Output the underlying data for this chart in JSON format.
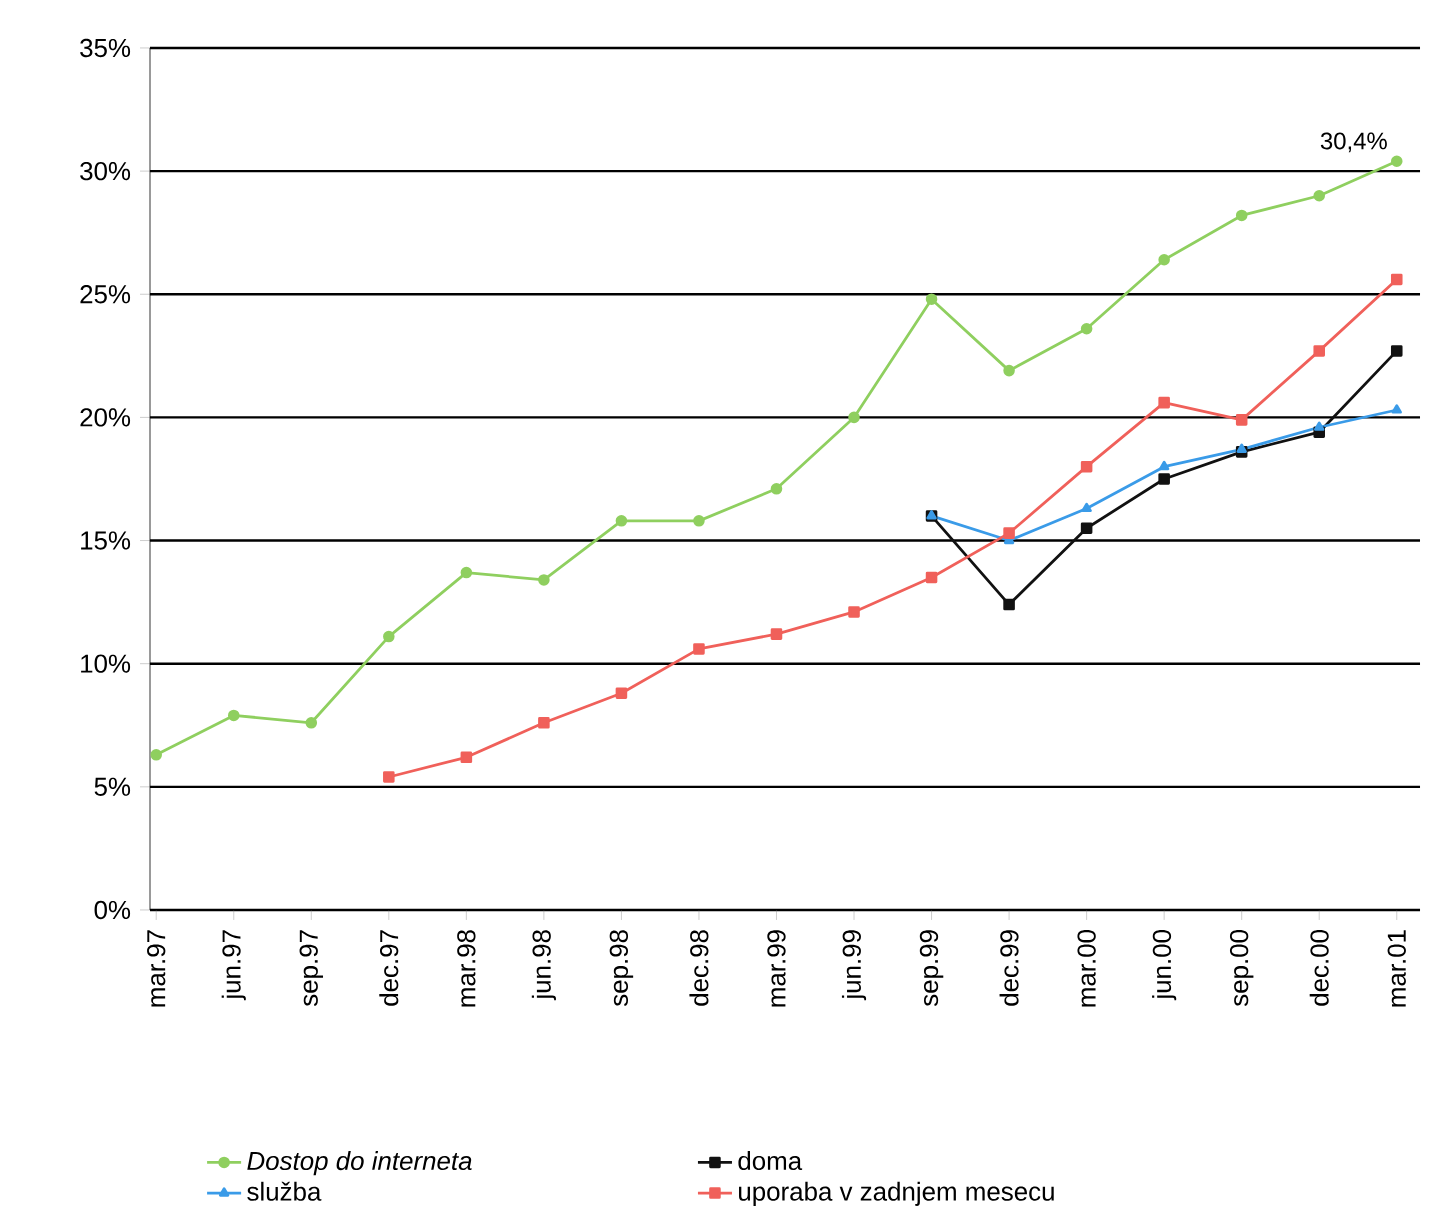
{
  "chart_data": {
    "type": "line",
    "categories": [
      "mar.97",
      "jun.97",
      "sep.97",
      "dec.97",
      "mar.98",
      "jun.98",
      "sep.98",
      "dec.98",
      "mar.99",
      "jun.99",
      "sep.99",
      "dec.99",
      "mar.00",
      "jun.00",
      "sep.00",
      "dec.00",
      "mar.01"
    ],
    "series": [
      {
        "name": "*Dostop do interneta*",
        "color": "#8fcf5f",
        "marker": "circle",
        "values": [
          6.3,
          7.9,
          7.6,
          11.1,
          13.7,
          13.4,
          15.8,
          15.8,
          17.1,
          20.0,
          24.8,
          21.9,
          23.6,
          26.4,
          28.2,
          29.0,
          30.4
        ]
      },
      {
        "name": "doma",
        "color": "#111111",
        "marker": "square",
        "values": [
          null,
          null,
          null,
          null,
          null,
          null,
          null,
          null,
          null,
          null,
          16.0,
          12.4,
          15.5,
          17.5,
          18.6,
          19.4,
          22.7
        ]
      },
      {
        "name": "služba",
        "color": "#3a9be8",
        "marker": "triangle",
        "values": [
          null,
          null,
          null,
          null,
          null,
          null,
          null,
          null,
          null,
          null,
          16.0,
          15.0,
          16.3,
          18.0,
          18.7,
          19.6,
          20.3
        ]
      },
      {
        "name": "uporaba v zadnjem mesecu",
        "color": "#f0605a",
        "marker": "square",
        "values": [
          null,
          null,
          null,
          5.4,
          6.2,
          7.6,
          8.8,
          10.6,
          11.2,
          12.1,
          13.5,
          15.3,
          18.0,
          20.6,
          19.9,
          22.7,
          25.6
        ]
      }
    ],
    "ylim": [
      0,
      35
    ],
    "yticks": [
      {
        "value": 0,
        "label": "0%"
      },
      {
        "value": 5,
        "label": "5%"
      },
      {
        "value": 10,
        "label": "10%"
      },
      {
        "value": 15,
        "label": "15%"
      },
      {
        "value": 20,
        "label": "20%"
      },
      {
        "value": 25,
        "label": "25%"
      },
      {
        "value": 30,
        "label": "30%"
      },
      {
        "value": 35,
        "label": "35%"
      }
    ],
    "annotations": [
      {
        "text": "30,4%",
        "x": "mar.01",
        "y": 30.4
      }
    ],
    "grid": "y",
    "legend": "bottom",
    "line_style": "solid"
  }
}
